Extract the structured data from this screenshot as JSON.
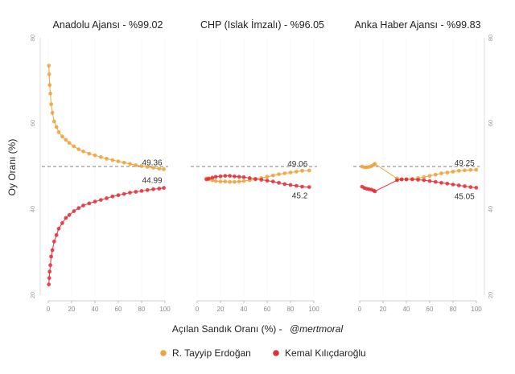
{
  "chart_data": {
    "type": "scatter",
    "y_axis_label": "Oy Oranı (%)",
    "x_axis_label": "Açılan Sandık Oranı (%) -",
    "x_axis_credit": "@mertmoral",
    "xlim": [
      0,
      100
    ],
    "ylim": [
      20,
      80
    ],
    "x_ticks": [
      "0",
      "20",
      "40",
      "60",
      "80",
      "100"
    ],
    "y_ticks": [
      "20",
      "40",
      "60",
      "80"
    ],
    "reference_line_y": 50,
    "colors": {
      "erdogan": "#f0a23a",
      "kilicdaroglu": "#e0303a",
      "reference": "#555555"
    },
    "legend": {
      "placement": "bottom",
      "entries": [
        "R. Tayyip Erdoğan",
        "Kemal Kılıçdaroğlu"
      ]
    },
    "panels": [
      {
        "title": "Anadolu Ajansı - %99.02",
        "series": [
          {
            "name": "R. Tayyip Erdoğan",
            "x": [
              0.5,
              0.8,
              1.2,
              1.8,
              2.5,
              3.5,
              5,
              7,
              9,
              12,
              15,
              18,
              22,
              26,
              30,
              35,
              40,
              45,
              50,
              55,
              60,
              65,
              70,
              75,
              80,
              85,
              90,
              95,
              99.02
            ],
            "y": [
              73.5,
              71.5,
              69,
              67,
              64.5,
              62.5,
              60.5,
              59.2,
              58,
              57,
              56.2,
              55.5,
              54.7,
              54,
              53.5,
              53,
              52.6,
              52.2,
              51.8,
              51.5,
              51.2,
              50.9,
              50.6,
              50.3,
              50.1,
              49.9,
              49.7,
              49.5,
              49.36
            ],
            "end_label": "49.36"
          },
          {
            "name": "Kemal Kılıçdaroğlu",
            "x": [
              0.5,
              0.8,
              1.2,
              1.8,
              2.5,
              3.5,
              5,
              7,
              9,
              12,
              15,
              18,
              22,
              26,
              30,
              35,
              40,
              45,
              50,
              55,
              60,
              65,
              70,
              75,
              80,
              85,
              90,
              95,
              99.02
            ],
            "y": [
              22.5,
              24,
              25.5,
              27,
              29,
              30.5,
              32.5,
              34,
              35.5,
              36.8,
              38,
              38.7,
              39.6,
              40.3,
              40.9,
              41.4,
              41.8,
              42.2,
              42.6,
              43,
              43.3,
              43.6,
              43.9,
              44.1,
              44.3,
              44.5,
              44.7,
              44.85,
              44.99
            ],
            "end_label": "44.99"
          }
        ]
      },
      {
        "title": "CHP (Islak İmzalı) - %96.05",
        "series": [
          {
            "name": "R. Tayyip Erdoğan",
            "x": [
              8,
              10,
              13,
              16,
              20,
              24,
              28,
              32,
              36,
              40,
              45,
              50,
              55,
              60,
              65,
              70,
              75,
              80,
              85,
              90,
              96.05
            ],
            "y": [
              47.2,
              47,
              46.8,
              46.6,
              46.5,
              46.5,
              46.4,
              46.4,
              46.5,
              46.6,
              46.8,
              47,
              47.3,
              47.6,
              47.9,
              48.2,
              48.4,
              48.6,
              48.8,
              49,
              49.06
            ],
            "end_label": "49.06"
          },
          {
            "name": "Kemal Kılıçdaroğlu",
            "x": [
              8,
              10,
              13,
              16,
              20,
              24,
              28,
              32,
              36,
              40,
              45,
              50,
              55,
              60,
              65,
              70,
              75,
              80,
              85,
              90,
              96.05
            ],
            "y": [
              47,
              47.2,
              47.4,
              47.6,
              47.7,
              47.8,
              47.8,
              47.7,
              47.6,
              47.5,
              47.3,
              47.1,
              46.9,
              46.7,
              46.5,
              46.2,
              45.9,
              45.7,
              45.5,
              45.3,
              45.2
            ],
            "end_label": "45.2"
          }
        ]
      },
      {
        "title": "Anka Haber Ajansı - %99.83",
        "series": [
          {
            "name": "R. Tayyip Erdoğan",
            "x": [
              2,
              4,
              6,
              8,
              10,
              12,
              13,
              32,
              36,
              40,
              45,
              50,
              55,
              60,
              65,
              70,
              75,
              80,
              85,
              90,
              95,
              99.83
            ],
            "y": [
              50,
              49.8,
              49.8,
              49.9,
              50.1,
              50.4,
              50.6,
              47.2,
              47,
              47,
              47.1,
              47.3,
              47.5,
              47.8,
              48.1,
              48.4,
              48.6,
              48.8,
              49,
              49.1,
              49.2,
              49.25
            ],
            "end_label": "49.25"
          },
          {
            "name": "Kemal Kılıçdaroğlu",
            "x": [
              2,
              4,
              6,
              8,
              10,
              12,
              13,
              32,
              36,
              40,
              45,
              50,
              55,
              60,
              65,
              70,
              75,
              80,
              85,
              90,
              95,
              99.83
            ],
            "y": [
              45.3,
              45,
              44.8,
              44.7,
              44.6,
              44.4,
              44.2,
              46.8,
              47,
              47,
              47,
              46.9,
              46.8,
              46.6,
              46.4,
              46.2,
              46,
              45.8,
              45.6,
              45.4,
              45.2,
              45.05
            ],
            "end_label": "45.05"
          }
        ]
      }
    ]
  }
}
